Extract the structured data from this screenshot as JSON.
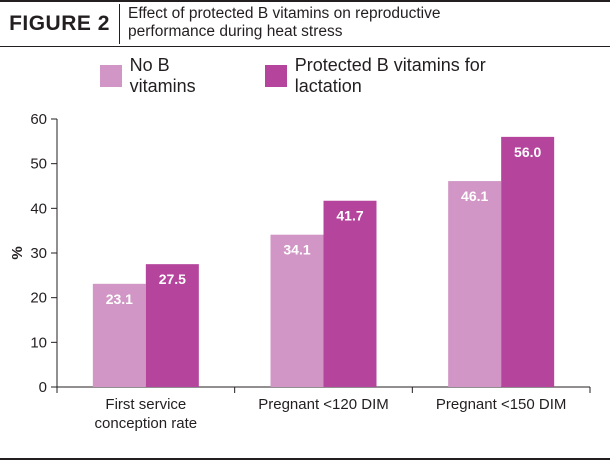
{
  "header": {
    "figure_label": "FIGURE 2",
    "title_line1": "Effect of protected B vitamins on reproductive",
    "title_line2": "performance during heat stress"
  },
  "chart_data": {
    "type": "bar",
    "categories": [
      [
        "First service",
        "conception rate"
      ],
      [
        "Pregnant <120 DIM"
      ],
      [
        "Pregnant <150 DIM"
      ]
    ],
    "series": [
      {
        "name": "No B vitamins",
        "values": [
          23.1,
          34.1,
          46.1
        ],
        "labels": [
          "23.1",
          "34.1",
          "46.1"
        ],
        "color": "#d196c5"
      },
      {
        "name": "Protected B vitamins for lactation",
        "values": [
          27.5,
          41.7,
          56.0
        ],
        "labels": [
          "27.5",
          "41.7",
          "56.0"
        ],
        "color": "#b5449c"
      }
    ],
    "ylabel": "%",
    "ylim": [
      0,
      60
    ],
    "yticks": [
      0,
      10,
      20,
      30,
      40,
      50,
      60
    ],
    "legend_position": "top",
    "grid": false
  }
}
